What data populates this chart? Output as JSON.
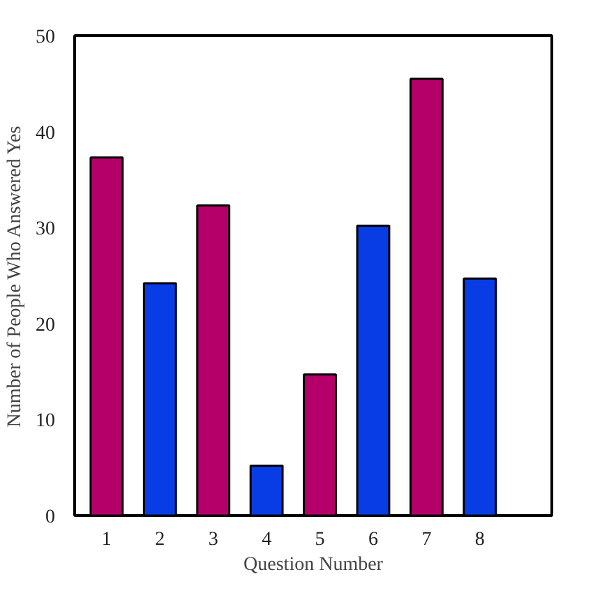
{
  "chart_data": {
    "type": "bar",
    "xlabel": "Question Number",
    "ylabel": "Number of People Who Answered Yes",
    "x": [
      1,
      2,
      3,
      4,
      5,
      6,
      7,
      8
    ],
    "values": [
      37.3,
      24.2,
      32.3,
      5.2,
      14.7,
      30.2,
      45.5,
      24.7
    ],
    "colors": [
      "#b5006a",
      "#083de6",
      "#b5006a",
      "#083de6",
      "#b5006a",
      "#083de6",
      "#b5006a",
      "#083de6"
    ],
    "xlim": [
      0.4,
      9.35
    ],
    "xticks": [
      1,
      2,
      3,
      4,
      5,
      6,
      7,
      8
    ],
    "ylim": [
      0,
      50
    ],
    "yticks": [
      0,
      10,
      20,
      30,
      40,
      50
    ],
    "grid": false
  }
}
